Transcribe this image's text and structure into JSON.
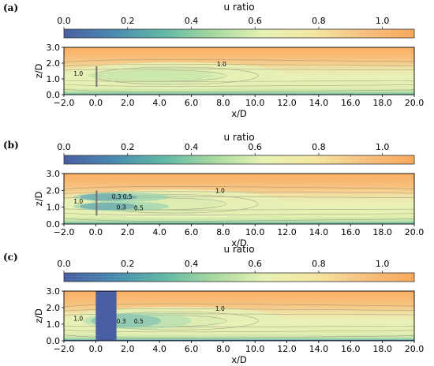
{
  "chart_data": [
    {
      "panel_label": "(a)",
      "type": "heatmap",
      "colorbar": {
        "label": "u ratio",
        "ticks": [
          "0.0",
          "0.2",
          "0.4",
          "0.6",
          "0.8",
          "1.0"
        ],
        "range": [
          0.0,
          1.1
        ],
        "colormap": [
          "#4a5fa3",
          "#4a8bb0",
          "#62b9a6",
          "#a8d99f",
          "#e7f1b4",
          "#f4e6a2",
          "#f6c080",
          "#f9a95c"
        ]
      },
      "xlabel": "x/D",
      "ylabel": "z/D",
      "xlim": [
        -2.0,
        20.0
      ],
      "ylim": [
        0.0,
        3.0
      ],
      "xticks": [
        "−2.0",
        "0.0",
        "2.0",
        "4.0",
        "6.0",
        "8.0",
        "10.0",
        "12.0",
        "14.0",
        "16.0",
        "18.0",
        "20.0"
      ],
      "yticks": [
        "0.0",
        "1.0",
        "2.0",
        "3.0"
      ],
      "contour_labels": [
        {
          "text": "1.0",
          "x": -1.1,
          "y": 1.35
        },
        {
          "text": "1.0",
          "x": 7.9,
          "y": 1.95
        }
      ],
      "obstacle": {
        "kind": "thin",
        "x": [
          0.0,
          0.1
        ],
        "z": [
          0.5,
          1.8
        ]
      }
    },
    {
      "panel_label": "(b)",
      "type": "heatmap",
      "colorbar": {
        "label": "u ratio",
        "ticks": [
          "0.0",
          "0.2",
          "0.4",
          "0.6",
          "0.8",
          "1.0"
        ],
        "range": [
          0.0,
          1.1
        ]
      },
      "xlabel": "x/D",
      "ylabel": "z/D",
      "xlim": [
        -2.0,
        20.0
      ],
      "ylim": [
        0.0,
        3.0
      ],
      "xticks": [
        "−2.0",
        "0.0",
        "2.0",
        "4.0",
        "6.0",
        "8.0",
        "10.0",
        "12.0",
        "14.0",
        "16.0",
        "18.0",
        "20.0"
      ],
      "yticks": [
        "0.0",
        "1.0",
        "2.0",
        "3.0"
      ],
      "contour_labels": [
        {
          "text": "1.0",
          "x": -1.1,
          "y": 1.35
        },
        {
          "text": "0.3",
          "x": 1.3,
          "y": 1.65
        },
        {
          "text": "0.5",
          "x": 2.0,
          "y": 1.65
        },
        {
          "text": "0.3",
          "x": 1.6,
          "y": 1.0
        },
        {
          "text": "0.5",
          "x": 2.7,
          "y": 0.95
        },
        {
          "text": "1.0",
          "x": 7.8,
          "y": 2.0
        }
      ],
      "obstacle": {
        "kind": "thin",
        "x": [
          0.0,
          0.1
        ],
        "z": [
          0.5,
          2.0
        ]
      }
    },
    {
      "panel_label": "(c)",
      "type": "heatmap",
      "colorbar": {
        "label": "u ratio",
        "ticks": [
          "0.0",
          "0.2",
          "0.4",
          "0.6",
          "0.8",
          "1.0"
        ],
        "range": [
          0.0,
          1.1
        ]
      },
      "xlabel": "x/D",
      "ylabel": "z/D",
      "xlim": [
        -2.0,
        20.0
      ],
      "ylim": [
        0.0,
        3.0
      ],
      "xticks": [
        "−2.0",
        "0.0",
        "2.0",
        "4.0",
        "6.0",
        "8.0",
        "10.0",
        "12.0",
        "14.0",
        "16.0",
        "18.0",
        "20.0"
      ],
      "yticks": [
        "0.0",
        "1.0",
        "2.0",
        "3.0"
      ],
      "contour_labels": [
        {
          "text": "1.0",
          "x": -1.1,
          "y": 1.35
        },
        {
          "text": "0.3",
          "x": 1.6,
          "y": 1.2
        },
        {
          "text": "0.5",
          "x": 2.7,
          "y": 1.2
        },
        {
          "text": "1.0",
          "x": 7.8,
          "y": 1.95
        }
      ],
      "obstacle": {
        "kind": "block",
        "x": [
          0.0,
          1.3
        ],
        "z": [
          0.0,
          3.0
        ]
      }
    }
  ]
}
